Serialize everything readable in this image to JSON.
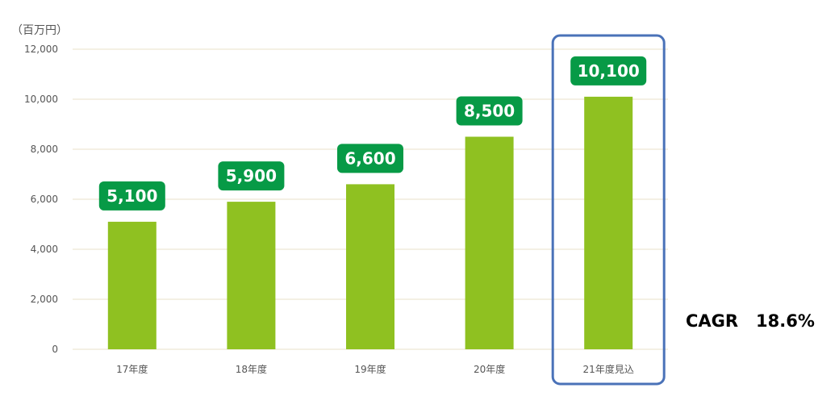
{
  "unit_label": "（百万円）",
  "cagr": {
    "label": "CAGR",
    "value": "18.6%"
  },
  "colors": {
    "bar": "#8fc121",
    "data_label_bg": "#079a46",
    "highlight_border": "#4a72b8",
    "grid": "#e8e0c8",
    "axis_text": "#555555"
  },
  "chart_data": {
    "type": "bar",
    "title": "",
    "xlabel": "",
    "ylabel": "",
    "categories": [
      "17年度",
      "18年度",
      "19年度",
      "20年度",
      "21年度見込"
    ],
    "values": [
      5100,
      5900,
      6600,
      8500,
      10100
    ],
    "data_labels": [
      "5,100",
      "5,900",
      "6,600",
      "8,500",
      "10,100"
    ],
    "ylim": [
      0,
      12000
    ],
    "yticks": [
      0,
      2000,
      4000,
      6000,
      8000,
      10000,
      12000
    ],
    "ytick_labels": [
      "0",
      "2,000",
      "4,000",
      "6,000",
      "8,000",
      "10,000",
      "12,000"
    ],
    "grid": true,
    "legend": "none",
    "highlighted_category": "21年度見込"
  }
}
